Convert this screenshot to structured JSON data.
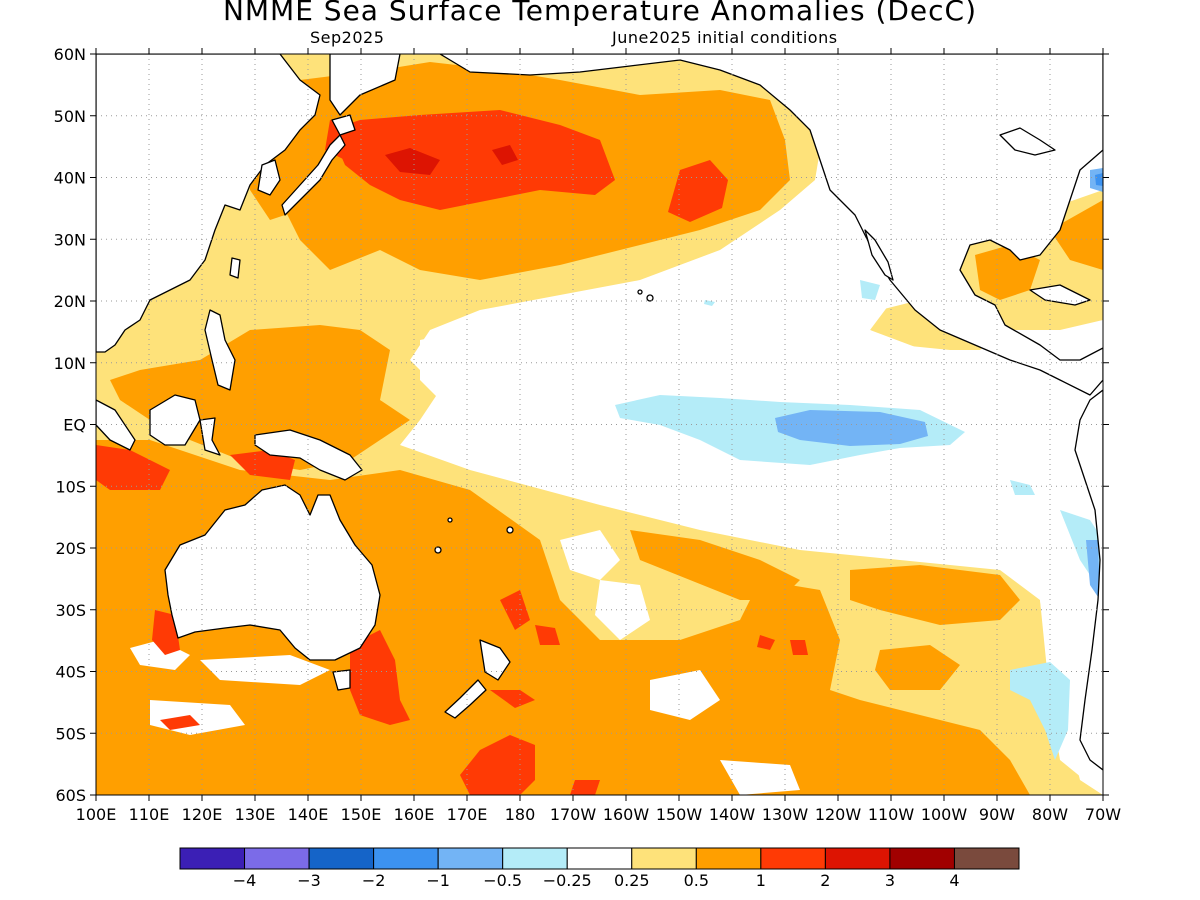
{
  "title": "NMME Sea Surface Temperature Anomalies (DecC)",
  "subtitle_left": "Sep2025",
  "subtitle_right": "June2025 initial conditions",
  "map": {
    "lat_labels": [
      "60N",
      "50N",
      "40N",
      "30N",
      "20N",
      "10N",
      "EQ",
      "10S",
      "20S",
      "30S",
      "40S",
      "50S",
      "60S"
    ],
    "lon_labels": [
      "100E",
      "110E",
      "120E",
      "130E",
      "140E",
      "150E",
      "160E",
      "170E",
      "180",
      "170W",
      "160W",
      "150W",
      "140W",
      "130W",
      "120W",
      "110W",
      "100W",
      "90W",
      "80W",
      "70W"
    ]
  },
  "colorbar": {
    "colors": [
      "#3b1fb5",
      "#7b6be8",
      "#1564c8",
      "#3c92f0",
      "#73b4f5",
      "#b4ecf8",
      "#ffffff",
      "#fee27a",
      "#ff9f00",
      "#ff3a05",
      "#dd1402",
      "#a10000",
      "#7a4a3d"
    ],
    "labels": [
      "−4",
      "−3",
      "−2",
      "−1",
      "−0.5",
      "−0.25",
      "0.25",
      "0.5",
      "1",
      "2",
      "3",
      "4"
    ]
  },
  "anomaly_colors": {
    "white": "#ffffff",
    "pale_yellow": "#fee27a",
    "orange": "#ff9f00",
    "red_orange": "#ff3a05",
    "red": "#dd1402",
    "dark_red": "#a10000",
    "pale_blue": "#b4ecf8",
    "light_blue": "#73b4f5",
    "blue": "#3c92f0"
  }
}
